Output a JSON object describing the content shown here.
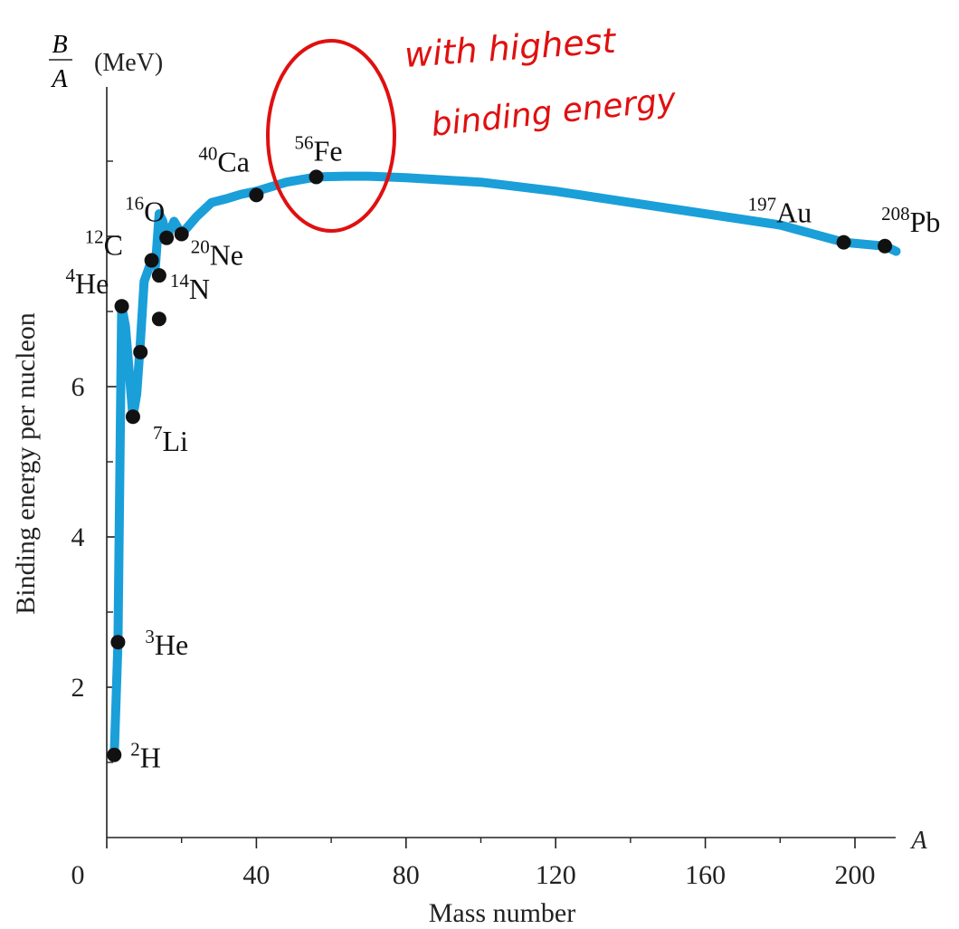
{
  "chart_data": {
    "type": "line",
    "y_unit_label": {
      "numerator": "B",
      "denominator": "A",
      "unit": "(MeV)"
    },
    "ylabel": "Binding energy per nucleon",
    "xlabel": "Mass number",
    "x_axis_symbol": "A",
    "xlim": [
      0,
      210
    ],
    "ylim": [
      0,
      9.5
    ],
    "x_ticks": [
      0,
      40,
      80,
      120,
      160,
      200
    ],
    "x_tick_labels": [
      "0",
      "40",
      "80",
      "120",
      "160",
      "200"
    ],
    "y_ticks": [
      2,
      4,
      6,
      8
    ],
    "y_tick_labels": [
      "2",
      "4",
      "6",
      ""
    ],
    "grid": false,
    "curve_color": "#1a9fd9",
    "point_color": "#111111",
    "curve": {
      "x": [
        2,
        3,
        4,
        5,
        7,
        8,
        9,
        10,
        12,
        13,
        14,
        15,
        16,
        18,
        20,
        24,
        28,
        32,
        36,
        40,
        48,
        56,
        64,
        70,
        80,
        100,
        120,
        140,
        160,
        180,
        197,
        208,
        211
      ],
      "y": [
        1.1,
        2.6,
        7.07,
        6.8,
        5.6,
        5.9,
        6.6,
        7.4,
        7.68,
        7.6,
        8.3,
        8.2,
        7.98,
        8.2,
        8.03,
        8.26,
        8.45,
        8.5,
        8.56,
        8.6,
        8.72,
        8.79,
        8.8,
        8.8,
        8.78,
        8.72,
        8.6,
        8.45,
        8.3,
        8.15,
        7.92,
        7.87,
        7.8
      ]
    },
    "points": [
      {
        "label": "2",
        "element": "H",
        "x": 2,
        "y": 1.1
      },
      {
        "label": "3",
        "element": "He",
        "x": 3,
        "y": 2.6
      },
      {
        "label": "4",
        "element": "He",
        "x": 4,
        "y": 7.07
      },
      {
        "label": "7",
        "element": "Li",
        "x": 7,
        "y": 5.6
      },
      {
        "label": "",
        "element": "",
        "x": 9,
        "y": 6.46
      },
      {
        "label": "12",
        "element": "C",
        "x": 12,
        "y": 7.68
      },
      {
        "label": "",
        "element": "",
        "x": 14,
        "y": 6.9
      },
      {
        "label": "14",
        "element": "N",
        "x": 14,
        "y": 7.48
      },
      {
        "label": "16",
        "element": "O",
        "x": 16,
        "y": 7.98
      },
      {
        "label": "20",
        "element": "Ne",
        "x": 20,
        "y": 8.03
      },
      {
        "label": "40",
        "element": "Ca",
        "x": 40,
        "y": 8.55
      },
      {
        "label": "56",
        "element": "Fe",
        "x": 56,
        "y": 8.79
      },
      {
        "label": "197",
        "element": "Au",
        "x": 197,
        "y": 7.92
      },
      {
        "label": "208",
        "element": "Pb",
        "x": 208,
        "y": 7.87
      }
    ]
  },
  "annotation": {
    "line1": "with highest",
    "line2": "binding energy",
    "color": "#e01010"
  }
}
